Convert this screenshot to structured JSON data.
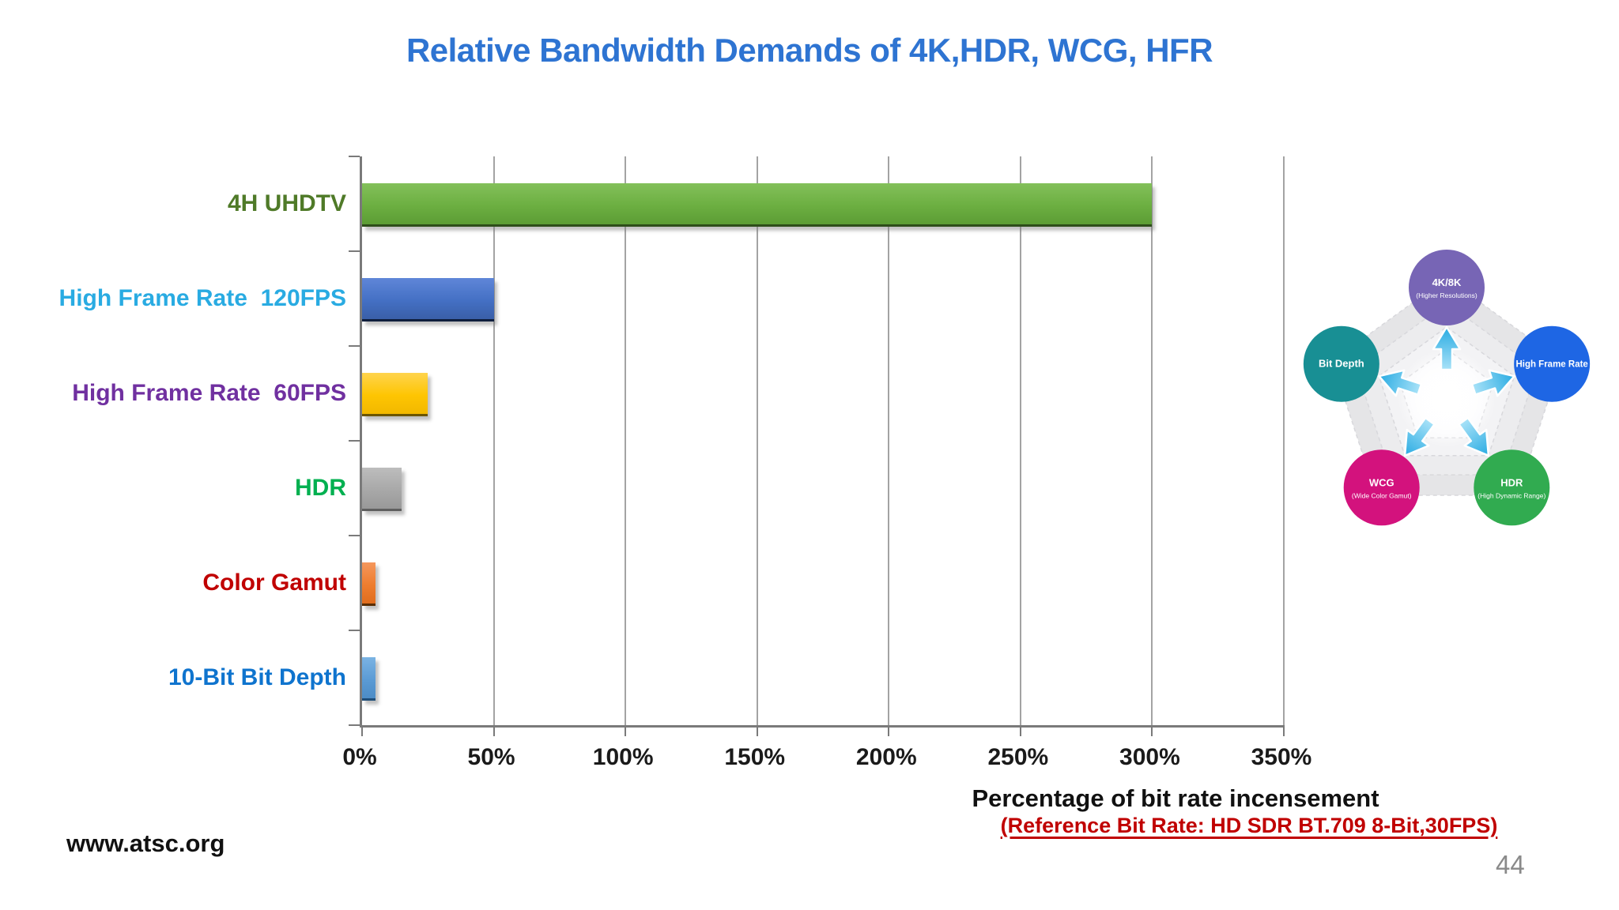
{
  "title": "Relative Bandwidth Demands of 4K,HDR, WCG, HFR",
  "title_color": "#2E74D2",
  "footer": {
    "website": "www.atsc.org",
    "page_number": "44"
  },
  "axis_note": {
    "label": "Percentage of bit rate incensement",
    "label_color": "#111111",
    "reference": "(Reference Bit Rate: HD SDR BT.709 8-Bit,30FPS)",
    "reference_color": "#C00000"
  },
  "chart_data": {
    "type": "bar",
    "orientation": "horizontal",
    "categories": [
      "4H UHDTV",
      "High Frame Rate  120FPS",
      "High Frame Rate  60FPS",
      "HDR",
      "Color Gamut",
      "10-Bit Bit Depth"
    ],
    "values": [
      300,
      50,
      25,
      15,
      5,
      5
    ],
    "unit": "%",
    "xlabel": "Percentage of bit rate incensement",
    "xlim": [
      0,
      350
    ],
    "xticks": [
      "0%",
      "50%",
      "100%",
      "150%",
      "200%",
      "250%",
      "300%",
      "350%"
    ],
    "grid": true,
    "axis_color": "#7a7a7a",
    "gridline_color": "#a3a3a3",
    "category_label_colors": [
      "#4F7A28",
      "#29ABE2",
      "#7030A0",
      "#00B050",
      "#C00000",
      "#0F74CE"
    ],
    "bar_colors": [
      {
        "top": "#83C05A",
        "mid": "#6CAF41",
        "bottom": "#5C9C35",
        "edge": "#2E4D1A"
      },
      {
        "top": "#5F86D8",
        "mid": "#4470C4",
        "bottom": "#3A5FA8",
        "edge": "#0F1E3D"
      },
      {
        "top": "#FFD44D",
        "mid": "#FEC502",
        "bottom": "#F2B800",
        "edge": "#6B5500"
      },
      {
        "top": "#BDBDBD",
        "mid": "#A8A8A8",
        "bottom": "#999999",
        "edge": "#5F5F5F"
      },
      {
        "top": "#F5975C",
        "mid": "#EE7D2F",
        "bottom": "#E06D1E",
        "edge": "#5A2D00"
      },
      {
        "top": "#7BB3E3",
        "mid": "#5B9BD5",
        "bottom": "#4C8CC6",
        "edge": "#1F4E79"
      }
    ]
  },
  "pentagon_diagram": {
    "arrow_color": "#29ABE2",
    "ring_fills": [
      "#E5E5E7",
      "#ECECEE",
      "#F3F3F5",
      "#FAFAFC"
    ],
    "nodes": [
      {
        "id": "4k8k",
        "title": "4K/8K",
        "subtitle": "(Higher Resolutions)",
        "color": "#7765B5",
        "position": "top"
      },
      {
        "id": "high-frame-rate",
        "title": "High Frame Rate",
        "subtitle": "",
        "color": "#1E66E4",
        "position": "right"
      },
      {
        "id": "hdr",
        "title": "HDR",
        "subtitle": "(High Dynamic Range)",
        "color": "#31AB50",
        "position": "bottom-right"
      },
      {
        "id": "wcg",
        "title": "WCG",
        "subtitle": "(Wide Color Gamut)",
        "color": "#D3127D",
        "position": "bottom-left"
      },
      {
        "id": "bit-depth",
        "title": "Bit Depth",
        "subtitle": "",
        "color": "#188F94",
        "position": "left"
      }
    ]
  }
}
